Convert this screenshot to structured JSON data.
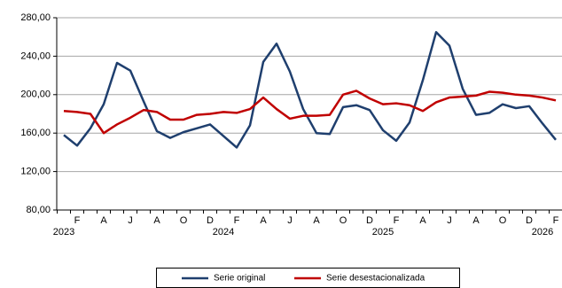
{
  "chart_data": {
    "type": "line",
    "categories": [
      null,
      "F",
      null,
      "A",
      null,
      "J",
      null,
      "A",
      null,
      "O",
      null,
      "D",
      null,
      "F",
      null,
      "A",
      null,
      "J",
      null,
      "A",
      null,
      "O",
      null,
      "D",
      null,
      "F",
      null,
      "A",
      null,
      "J",
      null,
      "A",
      null,
      "O",
      null,
      "D",
      null,
      "F"
    ],
    "year_labels": [
      "2023",
      null,
      null,
      null,
      null,
      null,
      null,
      null,
      null,
      null,
      null,
      null,
      "2024",
      null,
      null,
      null,
      null,
      null,
      null,
      null,
      null,
      null,
      null,
      null,
      "2025",
      null,
      null,
      null,
      null,
      null,
      null,
      null,
      null,
      null,
      null,
      null,
      "2026",
      null
    ],
    "series": [
      {
        "name": "Serie original",
        "color": "#1f3f6e",
        "values": [
          158,
          147,
          165,
          190,
          233,
          225,
          193,
          162,
          155,
          161,
          165,
          169,
          157,
          145,
          168,
          234,
          253,
          224,
          185,
          160,
          159,
          187,
          189,
          184,
          163,
          152,
          171,
          215,
          265,
          251,
          206,
          179,
          181,
          190,
          186,
          188,
          170,
          153
        ]
      },
      {
        "name": "Serie desestacionalizada",
        "color": "#c00000",
        "values": [
          183,
          182,
          180,
          160,
          169,
          176,
          184,
          182,
          174,
          174,
          179,
          180,
          182,
          181,
          185,
          197,
          185,
          175,
          178,
          178,
          179,
          200,
          204,
          196,
          190,
          191,
          189,
          183,
          192,
          197,
          198,
          199,
          203,
          202,
          200,
          199,
          197,
          194
        ]
      }
    ],
    "ylim": [
      80,
      280
    ],
    "yticks": [
      {
        "value": 80,
        "label": "80,00"
      },
      {
        "value": 120,
        "label": "120,00"
      },
      {
        "value": 160,
        "label": "160,00"
      },
      {
        "value": 200,
        "label": "200,00"
      },
      {
        "value": 240,
        "label": "240,00"
      },
      {
        "value": 280,
        "label": "280,00"
      }
    ],
    "grid": true,
    "legend": "bottom"
  }
}
